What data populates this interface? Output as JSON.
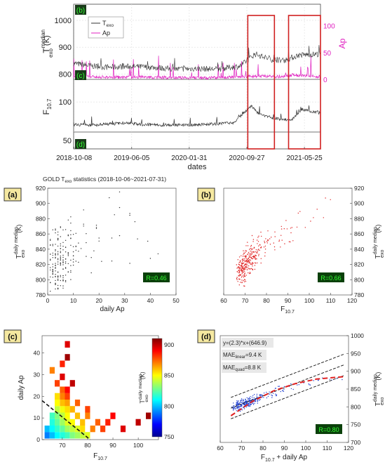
{
  "chart_data": [
    {
      "panel": "top-timeseries",
      "type": "line",
      "x_axis": {
        "label": "dates",
        "ticks": [
          "2018-10-08",
          "2019-06-05",
          "2020-01-31",
          "2020-09-27",
          "2021-05-25"
        ],
        "range": [
          "2018-10-06",
          "2021-07-31"
        ]
      },
      "subplots": [
        {
          "tag": "(b)",
          "ylabel_left": "T",
          "ylabel_left_sup": "median",
          "ylabel_left_sub": "exo",
          "ylabel_left_unit": "(K)",
          "ylim_left": [
            780,
            1060
          ],
          "yticks_left": [
            800,
            900,
            1000
          ],
          "ylabel_right": "Ap",
          "ylim_right": [
            0,
            140
          ],
          "yticks_right": [
            0,
            50,
            100
          ],
          "legend": {
            "placement": "top-left",
            "entries": [
              {
                "name": "T",
                "sub": "exo",
                "color": "#333333"
              },
              {
                "name": "Ap",
                "color": "#e020c0"
              }
            ]
          },
          "series": [
            {
              "name": "T_exo",
              "color": "#333333",
              "x": [
                "2018-10-06",
                "2018-12-15",
                "2019-03-01",
                "2019-06-01",
                "2019-09-01",
                "2019-12-01",
                "2020-03-01",
                "2020-06-01",
                "2020-09-01",
                "2020-11-01",
                "2021-01-01",
                "2021-03-01",
                "2021-05-01",
                "2021-07-31"
              ],
              "values": [
                840,
                830,
                825,
                828,
                825,
                818,
                820,
                818,
                830,
                875,
                855,
                850,
                870,
                875
              ]
            },
            {
              "name": "Ap",
              "color": "#e020c0",
              "x": [
                "2018-10-06",
                "2019-03-01",
                "2019-08-01",
                "2020-01-01",
                "2020-06-01",
                "2020-10-01",
                "2021-02-01",
                "2021-04-15",
                "2021-07-31"
              ],
              "values": [
                5,
                4,
                4,
                3,
                3,
                6,
                5,
                8,
                5
              ]
            }
          ]
        },
        {
          "tag": "(c)",
          "ylabel_left": "F",
          "ylabel_left_sub": "10.7",
          "ylim_left": [
            60,
            130
          ],
          "yticks_left": [
            100
          ],
          "series": [
            {
              "name": "F10.7",
              "color": "#333333",
              "x": [
                "2018-10-06",
                "2019-01-01",
                "2019-05-01",
                "2019-08-01",
                "2019-12-01",
                "2020-04-01",
                "2020-08-01",
                "2020-10-15",
                "2020-11-15",
                "2021-01-15",
                "2021-04-01",
                "2021-05-15",
                "2021-07-31"
              ],
              "values": [
                70,
                69,
                72,
                70,
                69,
                70,
                72,
                95,
                85,
                78,
                76,
                90,
                85
              ]
            }
          ]
        },
        {
          "tag": "(d)",
          "yticks_left": [
            50
          ]
        }
      ],
      "highlight_boxes": [
        {
          "from": "2020-10-01",
          "to": "2021-01-20"
        },
        {
          "from": "2021-03-20",
          "to": "2021-07-31"
        }
      ]
    },
    {
      "panel": "(a)",
      "type": "scatter",
      "title": "GOLD T",
      "title_sub": "exo",
      "title_rest": " statistics (2018-10-06~2021-07-31)",
      "xlabel": "daily Ap",
      "ylabel": "T",
      "ylabel_sup": "daily median",
      "ylabel_sub": "exo",
      "ylabel_unit": "(K)",
      "xlim": [
        0,
        50
      ],
      "ylim": [
        780,
        920
      ],
      "xticks": [
        0,
        10,
        20,
        30,
        40,
        50
      ],
      "yticks": [
        780,
        800,
        820,
        840,
        860,
        880,
        900,
        920
      ],
      "marker_color": "#333333",
      "x": [
        2,
        3,
        4,
        5,
        6,
        7,
        8,
        9,
        10,
        12,
        15,
        18,
        20,
        25,
        28,
        32,
        35,
        40,
        44
      ],
      "y": [
        815,
        820,
        825,
        828,
        830,
        833,
        835,
        838,
        840,
        845,
        848,
        852,
        855,
        860,
        865,
        868,
        862,
        870,
        876
      ],
      "annotation": "R=0.46"
    },
    {
      "panel": "(b)",
      "type": "scatter",
      "xlabel": "F",
      "xlabel_sub": "10.7",
      "ylabel": "T",
      "ylabel_sup": "daily median",
      "ylabel_sub": "exo",
      "ylabel_unit": "(K)",
      "xlim": [
        60,
        120
      ],
      "ylim": [
        780,
        920
      ],
      "xticks": [
        60,
        70,
        80,
        90,
        100,
        110,
        120
      ],
      "yticks": [
        780,
        800,
        820,
        840,
        860,
        880,
        900,
        920
      ],
      "marker_color": "#e02020",
      "x": [
        68,
        69,
        70,
        71,
        72,
        73,
        74,
        75,
        76,
        78,
        80,
        82,
        85,
        88,
        90,
        92,
        95,
        100,
        105,
        108
      ],
      "y": [
        810,
        815,
        820,
        824,
        828,
        832,
        835,
        838,
        840,
        843,
        846,
        850,
        855,
        860,
        863,
        865,
        872,
        880,
        888,
        895
      ],
      "annotation": "R=0.66"
    },
    {
      "panel": "(c)",
      "type": "heatmap",
      "xlabel": "F",
      "xlabel_sub": "10.7",
      "ylabel": "daily Ap",
      "xlim": [
        62,
        108
      ],
      "ylim": [
        0,
        48
      ],
      "xticks": [
        70,
        80,
        90,
        100
      ],
      "yticks": [
        0,
        10,
        20,
        30,
        40
      ],
      "colorbar": {
        "label": "T",
        "label_sup": "daily median",
        "label_sub": "exo",
        "label_unit": "(K)",
        "range": [
          750,
          910
        ],
        "ticks": [
          750,
          800,
          850,
          900
        ]
      },
      "dashed_line": {
        "from": [
          62,
          18
        ],
        "to": [
          81,
          0
        ]
      },
      "cells": [
        [
          64,
          2,
          790
        ],
        [
          66,
          2,
          800
        ],
        [
          68,
          2,
          810
        ],
        [
          70,
          2,
          815
        ],
        [
          72,
          2,
          820
        ],
        [
          74,
          2,
          830
        ],
        [
          76,
          2,
          835
        ],
        [
          78,
          2,
          840
        ],
        [
          80,
          2,
          845
        ],
        [
          64,
          5,
          800
        ],
        [
          66,
          5,
          810
        ],
        [
          68,
          5,
          818
        ],
        [
          70,
          5,
          825
        ],
        [
          72,
          5,
          835
        ],
        [
          74,
          5,
          840
        ],
        [
          76,
          5,
          845
        ],
        [
          78,
          5,
          855
        ],
        [
          82,
          5,
          870
        ],
        [
          86,
          5,
          880
        ],
        [
          94,
          5,
          895
        ],
        [
          66,
          8,
          815
        ],
        [
          68,
          8,
          825
        ],
        [
          70,
          8,
          835
        ],
        [
          72,
          8,
          845
        ],
        [
          74,
          8,
          850
        ],
        [
          78,
          8,
          860
        ],
        [
          84,
          8,
          875
        ],
        [
          88,
          8,
          885
        ],
        [
          100,
          8,
          900
        ],
        [
          66,
          11,
          820
        ],
        [
          68,
          11,
          830
        ],
        [
          70,
          11,
          840
        ],
        [
          72,
          11,
          850
        ],
        [
          76,
          11,
          860
        ],
        [
          80,
          11,
          870
        ],
        [
          90,
          11,
          890
        ],
        [
          104,
          11,
          905
        ],
        [
          68,
          14,
          840
        ],
        [
          70,
          14,
          848
        ],
        [
          72,
          14,
          855
        ],
        [
          74,
          14,
          862
        ],
        [
          80,
          14,
          880
        ],
        [
          68,
          17,
          850
        ],
        [
          70,
          17,
          860
        ],
        [
          72,
          17,
          865
        ],
        [
          76,
          17,
          875
        ],
        [
          68,
          20,
          855
        ],
        [
          70,
          20,
          870
        ],
        [
          72,
          20,
          880
        ],
        [
          70,
          23,
          875
        ],
        [
          72,
          23,
          890
        ],
        [
          68,
          26,
          880
        ],
        [
          70,
          29,
          895
        ],
        [
          66,
          32,
          870
        ],
        [
          72,
          38,
          905
        ],
        [
          72,
          44,
          895
        ],
        [
          70,
          35,
          885
        ],
        [
          74,
          26,
          900
        ]
      ]
    },
    {
      "panel": "(d)",
      "type": "scatter",
      "xlabel": "F",
      "xlabel_sub": "10.7",
      "xlabel_rest": " + daily Ap",
      "ylabel": "T",
      "ylabel_sup": "daily median",
      "ylabel_sub": "exo",
      "ylabel_unit": "(K)",
      "xlim": [
        60,
        120
      ],
      "ylim": [
        700,
        1000
      ],
      "xticks": [
        60,
        70,
        80,
        90,
        100,
        110,
        120
      ],
      "yticks": [
        700,
        750,
        800,
        850,
        900,
        950,
        1000
      ],
      "marker_color": "#1f3fd0",
      "x": [
        68,
        70,
        72,
        73,
        74,
        75,
        76,
        78,
        80,
        82,
        85,
        88,
        90,
        95,
        100,
        105,
        110,
        115
      ],
      "y": [
        800,
        805,
        810,
        812,
        815,
        818,
        820,
        825,
        830,
        833,
        840,
        845,
        850,
        858,
        865,
        870,
        878,
        885
      ],
      "equation": "y=(2.3)*x+(646.9)",
      "mae_linear": {
        "label": "MAE",
        "sub": "linear",
        "value": "=9.4 K"
      },
      "mae_quad": {
        "label": "MAE",
        "sub": "quad",
        "value": "=8.8 K"
      },
      "annotation": "R=0.80",
      "fit_linear": {
        "slope": 2.3,
        "intercept": 646.9
      },
      "fit_quad": [
        [
          65,
          775
        ],
        [
          75,
          815
        ],
        [
          85,
          845
        ],
        [
          95,
          865
        ],
        [
          105,
          878
        ],
        [
          118,
          885
        ]
      ],
      "bounds_offset": 30
    }
  ]
}
